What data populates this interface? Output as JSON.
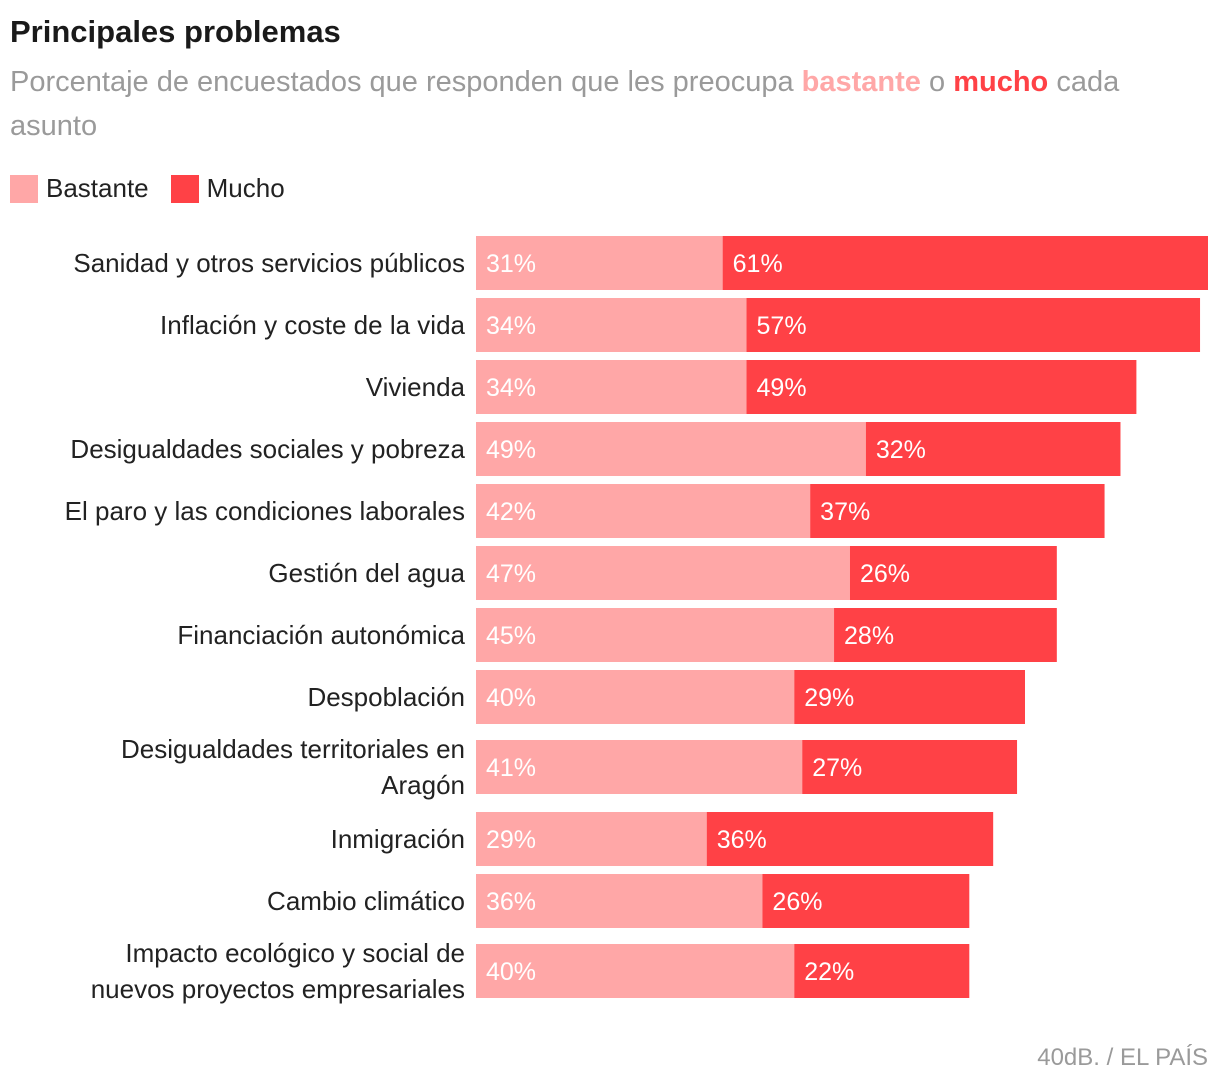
{
  "chart_data": {
    "type": "bar",
    "orientation": "horizontal",
    "stacked": true,
    "title": "Principales problemas",
    "subtitle": {
      "before": "Porcentaje de encuestados que responden que les preocupa",
      "highlight1": "bastante",
      "middle": "o",
      "highlight2": "mucho",
      "after": "cada asunto"
    },
    "categories": [
      [
        "Sanidad y otros servicios públicos"
      ],
      [
        "Inflación y coste de la vida"
      ],
      [
        "Vivienda"
      ],
      [
        "Desigualdades sociales y pobreza"
      ],
      [
        "El paro y las condiciones laborales"
      ],
      [
        "Gestión del agua"
      ],
      [
        "Financiación autonómica"
      ],
      [
        "Despoblación"
      ],
      [
        "Desigualdades territoriales en",
        "Aragón"
      ],
      [
        "Inmigración"
      ],
      [
        "Cambio climático"
      ],
      [
        "Impacto ecológico y social de",
        "nuevos proyectos empresariales"
      ]
    ],
    "series": [
      {
        "name": "Bastante",
        "color": "#ffa7a7",
        "values": [
          31,
          34,
          34,
          49,
          42,
          47,
          45,
          40,
          41,
          29,
          36,
          40
        ]
      },
      {
        "name": "Mucho",
        "color": "#ff4146",
        "values": [
          61,
          57,
          49,
          32,
          37,
          26,
          28,
          29,
          27,
          36,
          26,
          22
        ]
      }
    ],
    "value_suffix": "%",
    "xlim": [
      0,
      92
    ],
    "grid": false,
    "legend_position": "top-left"
  },
  "source": "40dB. / EL PAÍS"
}
